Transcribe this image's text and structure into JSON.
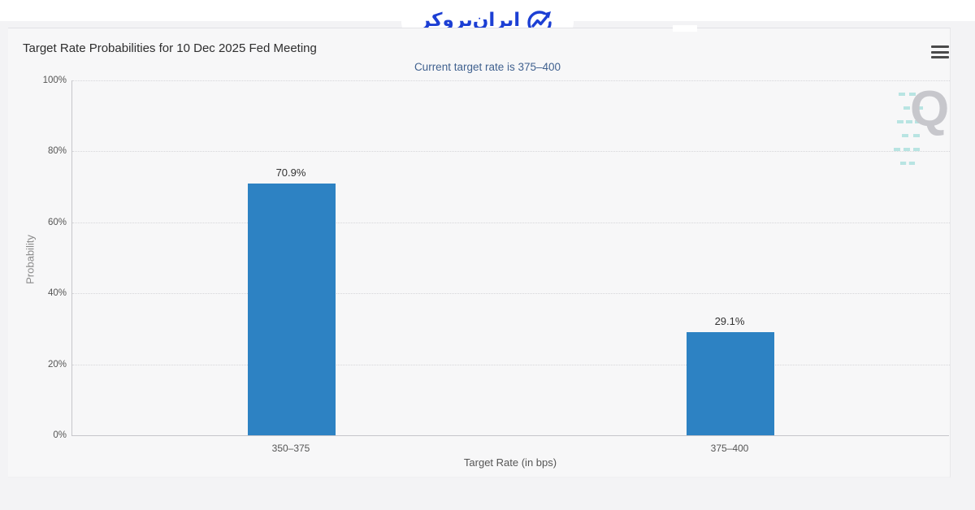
{
  "logo": {
    "text": "ایران‌بروکر",
    "icon": "trend-arrow-circle-icon",
    "color": "#1c3fd4"
  },
  "header": {
    "menu_icon": "hamburger-menu-icon",
    "watermark_letter": "Q"
  },
  "chart_data": {
    "type": "bar",
    "title": "Target Rate Probabilities for 10 Dec 2025 Fed Meeting",
    "subtitle": "Current target rate is 375–400",
    "categories": [
      "350–375",
      "375–400"
    ],
    "values": [
      70.9,
      29.1
    ],
    "value_labels": [
      "70.9%",
      "29.1%"
    ],
    "xlabel": "Target Rate (in bps)",
    "ylabel": "Probability",
    "ylim": [
      0,
      100
    ],
    "yticks": [
      0,
      20,
      40,
      60,
      80,
      100
    ],
    "ytick_labels": [
      "0%",
      "20%",
      "40%",
      "60%",
      "80%",
      "100%"
    ],
    "bar_color": "#2d82c3",
    "grid": "horizontal-dotted",
    "legend": "none"
  }
}
